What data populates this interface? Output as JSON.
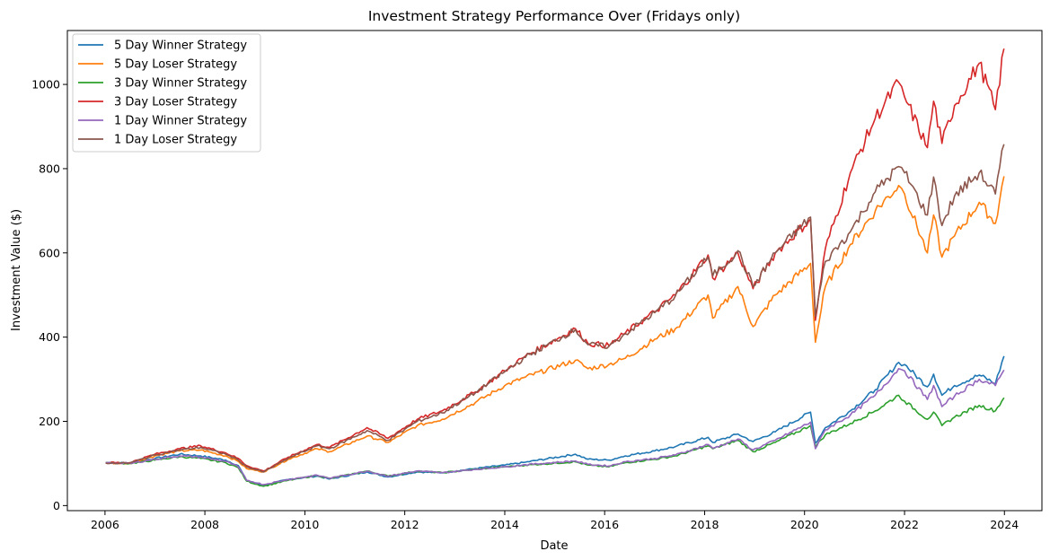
{
  "chart_data": {
    "type": "line",
    "title": "Investment Strategy Performance Over (Fridays only)",
    "xlabel": "Date",
    "ylabel": "Investment Value ($)",
    "xlim": [
      "2005-04-01",
      "2024-10-01"
    ],
    "ylim": [
      -12,
      1128
    ],
    "x_ticks": [
      "2006",
      "2008",
      "2010",
      "2012",
      "2014",
      "2016",
      "2018",
      "2020",
      "2022",
      "2024"
    ],
    "y_ticks": [
      0,
      200,
      400,
      600,
      800,
      1000
    ],
    "legend_position": "upper-left",
    "grid": false,
    "series": [
      {
        "name": "5 Day Winner Strategy",
        "color": "#1f77b4",
        "points": [
          [
            "2006-01-06",
            102
          ],
          [
            "2006-07-01",
            101
          ],
          [
            "2007-01-01",
            112
          ],
          [
            "2007-07-01",
            122
          ],
          [
            "2007-12-01",
            118
          ],
          [
            "2008-06-01",
            108
          ],
          [
            "2008-09-01",
            95
          ],
          [
            "2008-11-01",
            60
          ],
          [
            "2009-03-06",
            48
          ],
          [
            "2009-09-01",
            62
          ],
          [
            "2010-04-01",
            70
          ],
          [
            "2010-07-01",
            63
          ],
          [
            "2011-04-01",
            80
          ],
          [
            "2011-09-01",
            68
          ],
          [
            "2012-04-01",
            80
          ],
          [
            "2012-10-01",
            78
          ],
          [
            "2013-06-01",
            88
          ],
          [
            "2014-01-01",
            96
          ],
          [
            "2014-06-01",
            103
          ],
          [
            "2015-06-01",
            122
          ],
          [
            "2015-09-01",
            110
          ],
          [
            "2016-02-01",
            108
          ],
          [
            "2016-06-01",
            118
          ],
          [
            "2017-01-01",
            130
          ],
          [
            "2017-06-01",
            140
          ],
          [
            "2018-01-26",
            162
          ],
          [
            "2018-03-01",
            150
          ],
          [
            "2018-09-01",
            170
          ],
          [
            "2018-12-21",
            152
          ],
          [
            "2019-06-01",
            175
          ],
          [
            "2020-02-14",
            222
          ],
          [
            "2020-03-20",
            148
          ],
          [
            "2020-06-01",
            185
          ],
          [
            "2020-12-01",
            225
          ],
          [
            "2021-06-01",
            275
          ],
          [
            "2021-11-19",
            340
          ],
          [
            "2022-01-01",
            335
          ],
          [
            "2022-06-17",
            282
          ],
          [
            "2022-08-01",
            312
          ],
          [
            "2022-10-01",
            262
          ],
          [
            "2023-01-01",
            285
          ],
          [
            "2023-07-01",
            310
          ],
          [
            "2023-10-27",
            290
          ],
          [
            "2023-12-29",
            355
          ]
        ]
      },
      {
        "name": "5 Day Loser Strategy",
        "color": "#ff7f0e",
        "points": [
          [
            "2006-01-06",
            101
          ],
          [
            "2006-07-01",
            100
          ],
          [
            "2007-01-01",
            118
          ],
          [
            "2007-07-01",
            130
          ],
          [
            "2007-12-01",
            132
          ],
          [
            "2008-06-01",
            118
          ],
          [
            "2008-09-01",
            105
          ],
          [
            "2008-11-01",
            88
          ],
          [
            "2009-03-06",
            80
          ],
          [
            "2009-09-01",
            110
          ],
          [
            "2010-04-01",
            135
          ],
          [
            "2010-07-01",
            128
          ],
          [
            "2011-04-01",
            165
          ],
          [
            "2011-09-01",
            150
          ],
          [
            "2012-04-01",
            190
          ],
          [
            "2012-10-01",
            205
          ],
          [
            "2013-06-01",
            245
          ],
          [
            "2014-01-01",
            285
          ],
          [
            "2014-06-01",
            305
          ],
          [
            "2015-06-01",
            345
          ],
          [
            "2015-09-01",
            325
          ],
          [
            "2016-02-01",
            335
          ],
          [
            "2016-06-01",
            350
          ],
          [
            "2017-01-01",
            395
          ],
          [
            "2017-06-01",
            420
          ],
          [
            "2018-01-26",
            500
          ],
          [
            "2018-03-01",
            445
          ],
          [
            "2018-09-01",
            520
          ],
          [
            "2018-12-21",
            425
          ],
          [
            "2019-06-01",
            500
          ],
          [
            "2020-02-14",
            575
          ],
          [
            "2020-03-20",
            388
          ],
          [
            "2020-06-01",
            520
          ],
          [
            "2020-12-01",
            620
          ],
          [
            "2021-06-01",
            700
          ],
          [
            "2021-11-19",
            760
          ],
          [
            "2022-01-01",
            740
          ],
          [
            "2022-06-17",
            600
          ],
          [
            "2022-08-01",
            690
          ],
          [
            "2022-10-01",
            590
          ],
          [
            "2023-01-01",
            640
          ],
          [
            "2023-07-01",
            720
          ],
          [
            "2023-10-27",
            670
          ],
          [
            "2023-12-29",
            782
          ]
        ]
      },
      {
        "name": "3 Day Winner Strategy",
        "color": "#2ca02c",
        "points": [
          [
            "2006-01-06",
            102
          ],
          [
            "2006-07-01",
            100
          ],
          [
            "2007-01-01",
            108
          ],
          [
            "2007-07-01",
            116
          ],
          [
            "2007-12-01",
            112
          ],
          [
            "2008-06-01",
            102
          ],
          [
            "2008-09-01",
            90
          ],
          [
            "2008-11-01",
            58
          ],
          [
            "2009-03-06",
            46
          ],
          [
            "2009-09-01",
            60
          ],
          [
            "2010-04-01",
            72
          ],
          [
            "2010-07-01",
            64
          ],
          [
            "2011-04-01",
            82
          ],
          [
            "2011-09-01",
            70
          ],
          [
            "2012-04-01",
            82
          ],
          [
            "2012-10-01",
            78
          ],
          [
            "2013-06-01",
            86
          ],
          [
            "2014-01-01",
            92
          ],
          [
            "2014-06-01",
            96
          ],
          [
            "2015-06-01",
            104
          ],
          [
            "2015-09-01",
            96
          ],
          [
            "2016-02-01",
            92
          ],
          [
            "2016-06-01",
            102
          ],
          [
            "2017-01-01",
            110
          ],
          [
            "2017-06-01",
            118
          ],
          [
            "2018-01-26",
            142
          ],
          [
            "2018-03-01",
            135
          ],
          [
            "2018-09-01",
            155
          ],
          [
            "2018-12-21",
            128
          ],
          [
            "2019-06-01",
            150
          ],
          [
            "2020-02-14",
            190
          ],
          [
            "2020-03-20",
            140
          ],
          [
            "2020-06-01",
            168
          ],
          [
            "2020-12-01",
            195
          ],
          [
            "2021-06-01",
            225
          ],
          [
            "2021-11-19",
            262
          ],
          [
            "2022-01-01",
            248
          ],
          [
            "2022-06-17",
            205
          ],
          [
            "2022-08-01",
            222
          ],
          [
            "2022-10-01",
            190
          ],
          [
            "2023-01-01",
            210
          ],
          [
            "2023-07-01",
            238
          ],
          [
            "2023-10-27",
            225
          ],
          [
            "2023-12-29",
            256
          ]
        ]
      },
      {
        "name": "3 Day Loser Strategy",
        "color": "#d62728",
        "points": [
          [
            "2006-01-06",
            102
          ],
          [
            "2006-07-01",
            102
          ],
          [
            "2007-01-01",
            122
          ],
          [
            "2007-07-01",
            135
          ],
          [
            "2007-12-01",
            142
          ],
          [
            "2008-06-01",
            125
          ],
          [
            "2008-09-01",
            112
          ],
          [
            "2008-11-01",
            95
          ],
          [
            "2009-03-06",
            82
          ],
          [
            "2009-09-01",
            115
          ],
          [
            "2010-04-01",
            145
          ],
          [
            "2010-07-01",
            138
          ],
          [
            "2011-04-01",
            185
          ],
          [
            "2011-09-01",
            160
          ],
          [
            "2012-04-01",
            205
          ],
          [
            "2012-10-01",
            225
          ],
          [
            "2013-06-01",
            270
          ],
          [
            "2014-01-01",
            320
          ],
          [
            "2014-06-01",
            355
          ],
          [
            "2015-06-01",
            420
          ],
          [
            "2015-09-01",
            385
          ],
          [
            "2016-02-01",
            380
          ],
          [
            "2016-06-01",
            410
          ],
          [
            "2017-01-01",
            460
          ],
          [
            "2017-06-01",
            500
          ],
          [
            "2018-01-26",
            595
          ],
          [
            "2018-03-01",
            540
          ],
          [
            "2018-09-01",
            600
          ],
          [
            "2018-12-21",
            515
          ],
          [
            "2019-06-01",
            600
          ],
          [
            "2020-02-14",
            680
          ],
          [
            "2020-03-20",
            440
          ],
          [
            "2020-06-01",
            610
          ],
          [
            "2020-12-01",
            790
          ],
          [
            "2021-06-01",
            920
          ],
          [
            "2021-11-19",
            1005
          ],
          [
            "2022-01-01",
            970
          ],
          [
            "2022-06-17",
            850
          ],
          [
            "2022-08-01",
            960
          ],
          [
            "2022-10-01",
            860
          ],
          [
            "2023-01-01",
            950
          ],
          [
            "2023-07-01",
            1050
          ],
          [
            "2023-10-27",
            940
          ],
          [
            "2023-12-29",
            1085
          ]
        ]
      },
      {
        "name": "1 Day Winner Strategy",
        "color": "#9467bd",
        "points": [
          [
            "2006-01-06",
            102
          ],
          [
            "2006-07-01",
            100
          ],
          [
            "2007-01-01",
            110
          ],
          [
            "2007-07-01",
            118
          ],
          [
            "2007-12-01",
            115
          ],
          [
            "2008-06-01",
            105
          ],
          [
            "2008-09-01",
            92
          ],
          [
            "2008-11-01",
            60
          ],
          [
            "2009-03-06",
            50
          ],
          [
            "2009-09-01",
            62
          ],
          [
            "2010-04-01",
            72
          ],
          [
            "2010-07-01",
            65
          ],
          [
            "2011-04-01",
            82
          ],
          [
            "2011-09-01",
            70
          ],
          [
            "2012-04-01",
            82
          ],
          [
            "2012-10-01",
            78
          ],
          [
            "2013-06-01",
            86
          ],
          [
            "2014-01-01",
            92
          ],
          [
            "2014-06-01",
            97
          ],
          [
            "2015-06-01",
            106
          ],
          [
            "2015-09-01",
            98
          ],
          [
            "2016-02-01",
            94
          ],
          [
            "2016-06-01",
            104
          ],
          [
            "2017-01-01",
            112
          ],
          [
            "2017-06-01",
            120
          ],
          [
            "2018-01-26",
            145
          ],
          [
            "2018-03-01",
            136
          ],
          [
            "2018-09-01",
            158
          ],
          [
            "2018-12-21",
            132
          ],
          [
            "2019-06-01",
            155
          ],
          [
            "2020-02-14",
            198
          ],
          [
            "2020-03-20",
            135
          ],
          [
            "2020-06-01",
            180
          ],
          [
            "2020-12-01",
            215
          ],
          [
            "2021-06-01",
            262
          ],
          [
            "2021-11-19",
            325
          ],
          [
            "2022-01-01",
            320
          ],
          [
            "2022-06-17",
            252
          ],
          [
            "2022-08-01",
            285
          ],
          [
            "2022-10-01",
            235
          ],
          [
            "2023-01-01",
            260
          ],
          [
            "2023-07-01",
            300
          ],
          [
            "2023-10-27",
            285
          ],
          [
            "2023-12-29",
            322
          ]
        ]
      },
      {
        "name": "1 Day Loser Strategy",
        "color": "#8c564b",
        "points": [
          [
            "2006-01-06",
            101
          ],
          [
            "2006-07-01",
            101
          ],
          [
            "2007-01-01",
            120
          ],
          [
            "2007-07-01",
            132
          ],
          [
            "2007-12-01",
            138
          ],
          [
            "2008-06-01",
            122
          ],
          [
            "2008-09-01",
            108
          ],
          [
            "2008-11-01",
            92
          ],
          [
            "2009-03-06",
            80
          ],
          [
            "2009-09-01",
            112
          ],
          [
            "2010-04-01",
            142
          ],
          [
            "2010-07-01",
            135
          ],
          [
            "2011-04-01",
            178
          ],
          [
            "2011-09-01",
            155
          ],
          [
            "2012-04-01",
            200
          ],
          [
            "2012-10-01",
            220
          ],
          [
            "2013-06-01",
            268
          ],
          [
            "2014-01-01",
            318
          ],
          [
            "2014-06-01",
            352
          ],
          [
            "2015-06-01",
            418
          ],
          [
            "2015-09-01",
            382
          ],
          [
            "2016-02-01",
            378
          ],
          [
            "2016-06-01",
            408
          ],
          [
            "2017-01-01",
            458
          ],
          [
            "2017-06-01",
            498
          ],
          [
            "2018-01-26",
            590
          ],
          [
            "2018-03-01",
            545
          ],
          [
            "2018-09-01",
            605
          ],
          [
            "2018-12-21",
            520
          ],
          [
            "2019-06-01",
            600
          ],
          [
            "2020-02-14",
            685
          ],
          [
            "2020-03-20",
            450
          ],
          [
            "2020-06-01",
            580
          ],
          [
            "2020-12-01",
            650
          ],
          [
            "2021-06-01",
            745
          ],
          [
            "2021-11-19",
            805
          ],
          [
            "2022-01-01",
            790
          ],
          [
            "2022-06-17",
            690
          ],
          [
            "2022-08-01",
            780
          ],
          [
            "2022-10-01",
            665
          ],
          [
            "2023-01-01",
            735
          ],
          [
            "2023-07-01",
            790
          ],
          [
            "2023-10-27",
            740
          ],
          [
            "2023-12-29",
            858
          ]
        ]
      }
    ]
  }
}
